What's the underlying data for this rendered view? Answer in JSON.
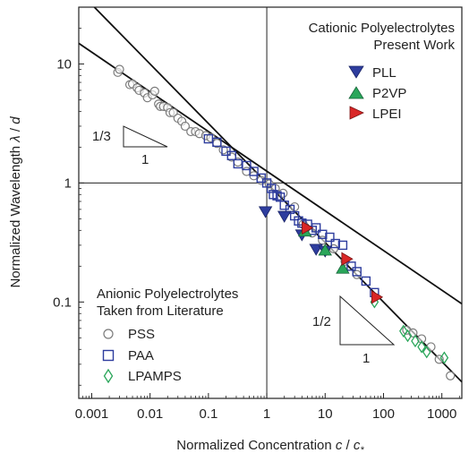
{
  "chart_data": {
    "type": "scatter",
    "xscale": "log",
    "yscale": "log",
    "xlim": [
      0.0006,
      2200
    ],
    "ylim": [
      0.0155,
      30
    ],
    "xlabel_main": "Normalized Concentration ",
    "xlabel_var": "c",
    "xlabel_sep": " / ",
    "xlabel_den": "c",
    "xlabel_sub": "*",
    "ylabel_main": "Normalized Wavelength ",
    "ylabel_var": "λ",
    "ylabel_sep": " / ",
    "ylabel_den": "d",
    "x_ticks": [
      {
        "value": 0.001,
        "label": "0.001"
      },
      {
        "value": 0.01,
        "label": "0.01"
      },
      {
        "value": 0.1,
        "label": "0.1"
      },
      {
        "value": 1,
        "label": "1"
      },
      {
        "value": 10,
        "label": "10"
      },
      {
        "value": 100,
        "label": "100"
      },
      {
        "value": 1000,
        "label": "1000"
      }
    ],
    "y_ticks": [
      {
        "value": 0.1,
        "label": "0.1"
      },
      {
        "value": 1,
        "label": "1"
      },
      {
        "value": 10,
        "label": "10"
      }
    ],
    "cationic_heading": [
      "Cationic Polyelectrolytes",
      "Present Work"
    ],
    "anionic_heading": [
      "Anionic Polyelectrolytes",
      "Taken from Literature"
    ],
    "slope_labels": {
      "third": {
        "num": "1/3",
        "den": "1"
      },
      "half": {
        "num": "1/2",
        "den": "1"
      }
    },
    "fit_lines": [
      {
        "name": "slope -1/3",
        "x": [
          0.0006,
          2200
        ],
        "y": [
          14.9,
          0.0966
        ]
      },
      {
        "name": "slope -1/2",
        "x": [
          0.0006,
          2200
        ],
        "y": [
          40.8,
          0.0213
        ]
      }
    ],
    "series": [
      {
        "name": "PLL",
        "group": "cationic",
        "marker": "triangle-down",
        "color": "#2e3d9e",
        "x": [
          0.95,
          2.0,
          4.0,
          7.0,
          10.0
        ],
        "y": [
          0.58,
          0.53,
          0.37,
          0.28,
          0.27
        ]
      },
      {
        "name": "P2VP",
        "group": "cationic",
        "marker": "triangle-up",
        "color": "#2aa65a",
        "x": [
          4.5,
          10.0,
          20.0
        ],
        "y": [
          0.39,
          0.27,
          0.19
        ]
      },
      {
        "name": "LPEI",
        "group": "cationic",
        "marker": "triangle-right",
        "color": "#d92626",
        "x": [
          4.8,
          23.0,
          75.0
        ],
        "y": [
          0.42,
          0.23,
          0.11
        ]
      },
      {
        "name": "PSS",
        "group": "anionic",
        "marker": "circle",
        "color": "#7a7a7a",
        "x": [
          0.0028,
          0.003,
          0.0045,
          0.005,
          0.006,
          0.0065,
          0.008,
          0.009,
          0.011,
          0.012,
          0.014,
          0.015,
          0.017,
          0.02,
          0.022,
          0.025,
          0.03,
          0.035,
          0.04,
          0.05,
          0.06,
          0.07,
          0.09,
          0.11,
          0.14,
          0.18,
          0.25,
          0.32,
          0.45,
          0.6,
          0.8,
          1.1,
          1.4,
          1.9,
          3.0,
          4.2,
          6.0,
          9.0,
          14.0,
          22.0,
          35.0,
          250.0,
          320.0,
          450.0,
          650.0,
          900.0,
          1400.0
        ],
        "y": [
          8.5,
          9.0,
          6.7,
          6.8,
          6.3,
          6.0,
          5.7,
          5.2,
          5.5,
          5.9,
          4.6,
          4.4,
          4.4,
          4.3,
          3.9,
          3.9,
          3.5,
          3.3,
          3.0,
          2.7,
          2.7,
          2.6,
          2.5,
          2.4,
          2.15,
          1.9,
          1.65,
          1.5,
          1.25,
          1.15,
          1.05,
          0.98,
          0.9,
          0.82,
          0.63,
          0.45,
          0.38,
          0.33,
          0.28,
          0.22,
          0.17,
          0.058,
          0.055,
          0.049,
          0.042,
          0.033,
          0.024
        ]
      },
      {
        "name": "PAA",
        "group": "anionic",
        "marker": "square",
        "color": "#2e3d9e",
        "x": [
          0.1,
          0.14,
          0.2,
          0.25,
          0.32,
          0.45,
          0.6,
          0.8,
          1.0,
          1.2,
          1.3,
          1.5,
          1.7,
          2.0,
          2.5,
          3.0,
          3.5,
          4.0,
          5.0,
          6.0,
          7.0,
          9.0,
          12.0,
          15.0,
          20.0,
          28.0,
          35.0,
          50.0,
          70.0
        ],
        "y": [
          2.35,
          2.2,
          1.85,
          1.7,
          1.45,
          1.4,
          1.25,
          1.1,
          1.0,
          0.9,
          0.8,
          0.78,
          0.76,
          0.65,
          0.6,
          0.53,
          0.48,
          0.46,
          0.45,
          0.4,
          0.42,
          0.37,
          0.35,
          0.31,
          0.3,
          0.2,
          0.18,
          0.15,
          0.12
        ]
      },
      {
        "name": "LPAMPS",
        "group": "anionic",
        "marker": "diamond",
        "color": "#2aa65a",
        "x": [
          70.0,
          220.0,
          260.0,
          350.0,
          450.0,
          550.0,
          1100.0
        ],
        "y": [
          0.1,
          0.057,
          0.052,
          0.047,
          0.042,
          0.038,
          0.034
        ]
      }
    ]
  }
}
